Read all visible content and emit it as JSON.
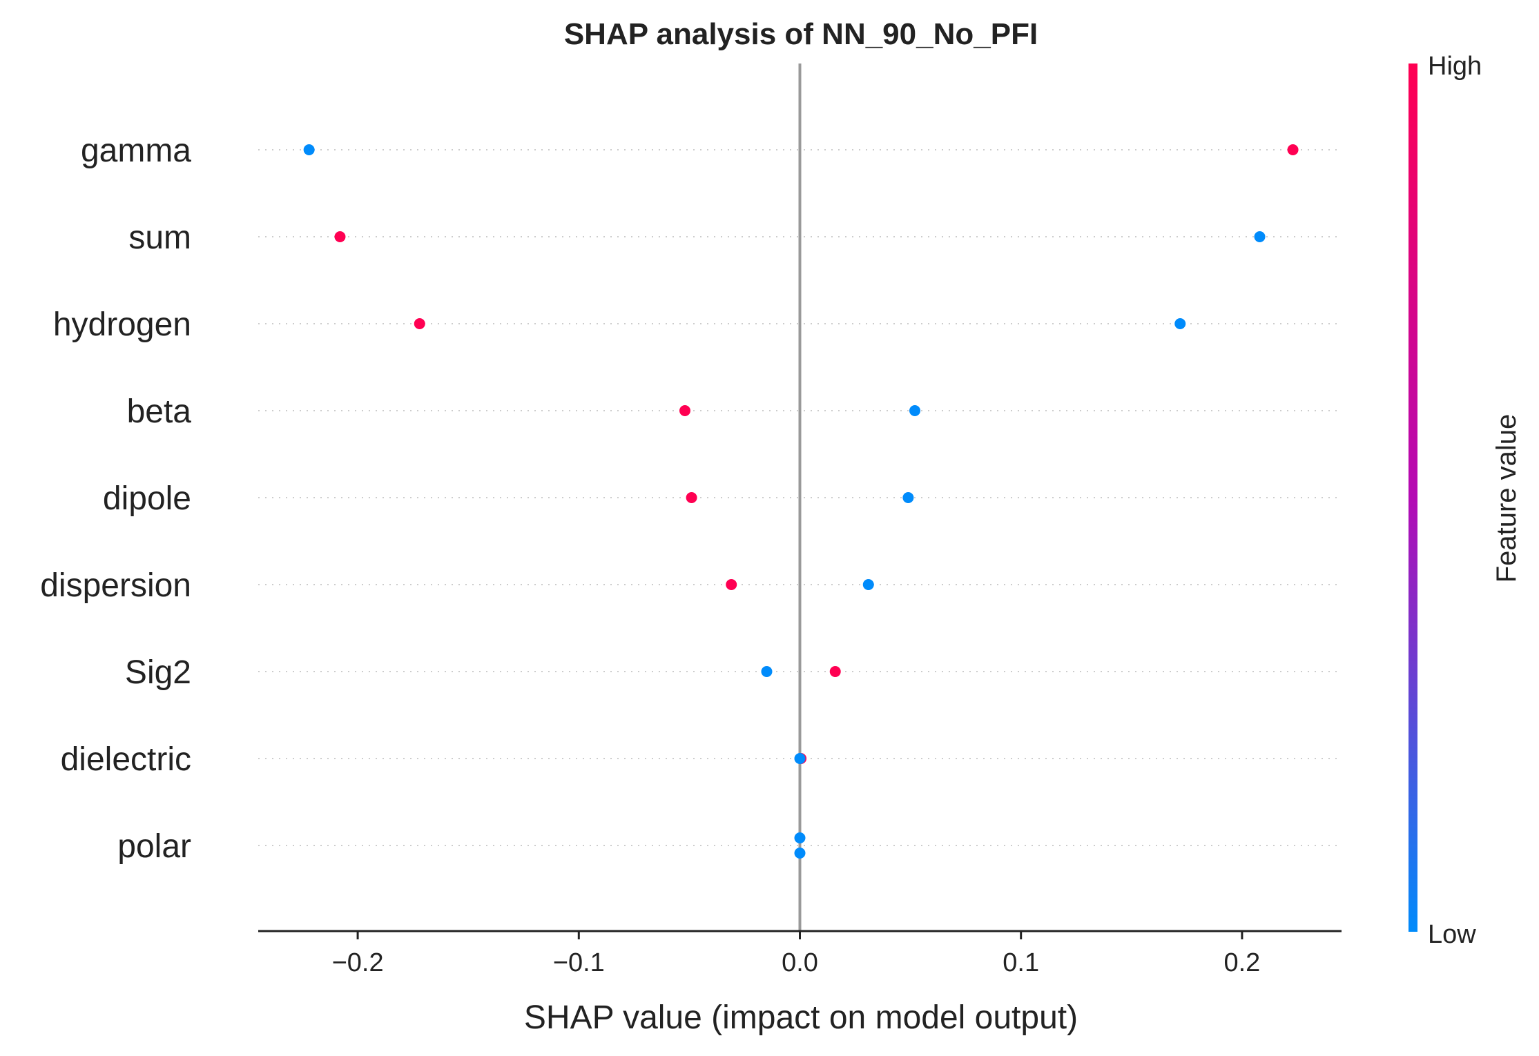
{
  "chart_data": {
    "type": "scatter",
    "subtype": "shap-beeswarm",
    "title": "SHAP analysis of NN_90_No_PFI",
    "xlabel": "SHAP value (impact on model output)",
    "xlim": [
      -0.245,
      0.245
    ],
    "xticks": [
      -0.2,
      -0.1,
      0.0,
      0.1,
      0.2
    ],
    "xtick_labels": [
      "−0.2",
      "−0.1",
      "0.0",
      "0.1",
      "0.2"
    ],
    "features": [
      "gamma",
      "sum",
      "hydrogen",
      "beta",
      "dipole",
      "dispersion",
      "Sig2",
      "dielectric",
      "polar"
    ],
    "points": [
      {
        "feature": "gamma",
        "shap": -0.222,
        "value": "low"
      },
      {
        "feature": "gamma",
        "shap": 0.223,
        "value": "high"
      },
      {
        "feature": "sum",
        "shap": -0.208,
        "value": "high"
      },
      {
        "feature": "sum",
        "shap": 0.208,
        "value": "low"
      },
      {
        "feature": "hydrogen",
        "shap": -0.172,
        "value": "high"
      },
      {
        "feature": "hydrogen",
        "shap": 0.172,
        "value": "low"
      },
      {
        "feature": "beta",
        "shap": -0.052,
        "value": "high"
      },
      {
        "feature": "beta",
        "shap": 0.052,
        "value": "low"
      },
      {
        "feature": "dipole",
        "shap": -0.049,
        "value": "high"
      },
      {
        "feature": "dipole",
        "shap": 0.049,
        "value": "low"
      },
      {
        "feature": "dispersion",
        "shap": -0.031,
        "value": "high"
      },
      {
        "feature": "dispersion",
        "shap": 0.031,
        "value": "low"
      },
      {
        "feature": "Sig2",
        "shap": -0.015,
        "value": "low"
      },
      {
        "feature": "Sig2",
        "shap": 0.016,
        "value": "high"
      },
      {
        "feature": "dielectric",
        "shap": 0.0005,
        "value": "high"
      },
      {
        "feature": "dielectric",
        "shap": 0.0,
        "value": "low"
      },
      {
        "feature": "polar",
        "shap": 0.0,
        "value": "low",
        "jitter": -1
      },
      {
        "feature": "polar",
        "shap": 0.0,
        "value": "low",
        "jitter": 1
      }
    ],
    "colorbar": {
      "label": "Feature value",
      "high_label": "High",
      "low_label": "Low",
      "high_color": "#ff0052",
      "mid_color": "#b40ab4",
      "low_color": "#008bfb"
    },
    "zero_line_color": "#999999",
    "grid": "dotted rows"
  }
}
